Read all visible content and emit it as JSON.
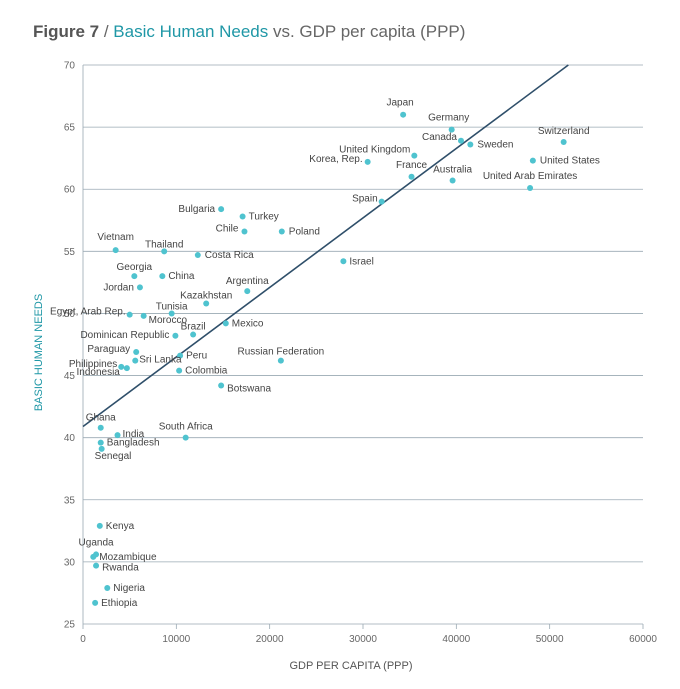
{
  "header": {
    "figure_number": "Figure 7",
    "separator": " / ",
    "title_main": "Basic Human Needs",
    "title_rest": " vs. GDP per capita (PPP)"
  },
  "colors": {
    "accent": "#1f97a6",
    "point": "#4fc3cf",
    "trend": "#2f4f6a",
    "grid": "#9aa9b3"
  },
  "chart_data": {
    "type": "scatter",
    "xlabel": "GDP PER CAPITA (PPP)",
    "ylabel": "BASIC HUMAN NEEDS",
    "xlim": [
      0,
      60000
    ],
    "ylim": [
      25,
      70
    ],
    "xticks": [
      0,
      10000,
      20000,
      30000,
      40000,
      50000,
      60000
    ],
    "yticks": [
      25,
      30,
      35,
      40,
      45,
      50,
      55,
      60,
      65,
      70
    ],
    "grid": "horizontal",
    "trendline": {
      "type": "linear",
      "from": [
        0,
        40.9
      ],
      "to": [
        52000,
        70
      ]
    },
    "points": [
      {
        "label": "Japan",
        "x": 34300,
        "y": 66.0
      },
      {
        "label": "Germany",
        "x": 39500,
        "y": 64.8
      },
      {
        "label": "Switzerland",
        "x": 51500,
        "y": 63.8
      },
      {
        "label": "Canada",
        "x": 40500,
        "y": 63.9
      },
      {
        "label": "Sweden",
        "x": 41500,
        "y": 63.6
      },
      {
        "label": "United Kingdom",
        "x": 35500,
        "y": 62.7
      },
      {
        "label": "Korea, Rep.",
        "x": 30500,
        "y": 62.2
      },
      {
        "label": "United States",
        "x": 48200,
        "y": 62.3
      },
      {
        "label": "France",
        "x": 35200,
        "y": 61.0
      },
      {
        "label": "Australia",
        "x": 39600,
        "y": 60.7
      },
      {
        "label": "United Arab Emirates",
        "x": 47900,
        "y": 60.1
      },
      {
        "label": "Spain",
        "x": 32000,
        "y": 59.0
      },
      {
        "label": "Bulgaria",
        "x": 14800,
        "y": 58.4
      },
      {
        "label": "Turkey",
        "x": 17100,
        "y": 57.8
      },
      {
        "label": "Chile",
        "x": 17300,
        "y": 56.6
      },
      {
        "label": "Poland",
        "x": 21300,
        "y": 56.6
      },
      {
        "label": "Vietnam",
        "x": 3500,
        "y": 55.1
      },
      {
        "label": "Thailand",
        "x": 8700,
        "y": 55.0
      },
      {
        "label": "Costa Rica",
        "x": 12300,
        "y": 54.7
      },
      {
        "label": "Israel",
        "x": 27900,
        "y": 54.2
      },
      {
        "label": "Georgia",
        "x": 5500,
        "y": 53.0
      },
      {
        "label": "China",
        "x": 8500,
        "y": 53.0
      },
      {
        "label": "Jordan",
        "x": 6100,
        "y": 52.1
      },
      {
        "label": "Argentina",
        "x": 17600,
        "y": 51.8
      },
      {
        "label": "Kazakhstan",
        "x": 13200,
        "y": 50.8
      },
      {
        "label": "Egypt, Arab Rep.",
        "x": 5000,
        "y": 49.9
      },
      {
        "label": "Tunisia",
        "x": 9500,
        "y": 50.0
      },
      {
        "label": "Morocco",
        "x": 6500,
        "y": 49.8
      },
      {
        "label": "Mexico",
        "x": 15300,
        "y": 49.2
      },
      {
        "label": "Brazil",
        "x": 11800,
        "y": 48.3
      },
      {
        "label": "Dominican Republic",
        "x": 9900,
        "y": 48.2
      },
      {
        "label": "Paraguay",
        "x": 5700,
        "y": 46.9
      },
      {
        "label": "Peru",
        "x": 10400,
        "y": 46.6
      },
      {
        "label": "Russian Federation",
        "x": 21200,
        "y": 46.2
      },
      {
        "label": "Sri Lanka",
        "x": 5600,
        "y": 46.2
      },
      {
        "label": "Philippines",
        "x": 4100,
        "y": 45.7
      },
      {
        "label": "Indonesia",
        "x": 4700,
        "y": 45.6
      },
      {
        "label": "Colombia",
        "x": 10300,
        "y": 45.4
      },
      {
        "label": "Botswana",
        "x": 14800,
        "y": 44.2
      },
      {
        "label": "Ghana",
        "x": 1900,
        "y": 40.8
      },
      {
        "label": "India",
        "x": 3700,
        "y": 40.2
      },
      {
        "label": "South Africa",
        "x": 11000,
        "y": 40.0
      },
      {
        "label": "Bangladesh",
        "x": 1900,
        "y": 39.6
      },
      {
        "label": "Senegal",
        "x": 2000,
        "y": 39.1
      },
      {
        "label": "Kenya",
        "x": 1800,
        "y": 32.9
      },
      {
        "label": "Uganda",
        "x": 1400,
        "y": 30.6
      },
      {
        "label": "Mozambique",
        "x": 1100,
        "y": 30.4
      },
      {
        "label": "Rwanda",
        "x": 1400,
        "y": 29.7
      },
      {
        "label": "Nigeria",
        "x": 2600,
        "y": 27.9
      },
      {
        "label": "Ethiopia",
        "x": 1300,
        "y": 26.7
      }
    ]
  }
}
